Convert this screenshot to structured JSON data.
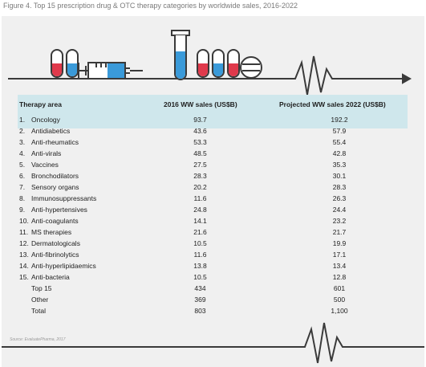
{
  "figure_caption": "Figure 4. Top 15 prescription drug & OTC therapy categories by worldwide sales, 2016-2022",
  "table": {
    "headers": {
      "therapy_area": "Therapy area",
      "sales_2016": "2016 WW sales (US$B)",
      "sales_2022": "Projected WW sales 2022 (US$B)"
    },
    "rows": [
      {
        "num": "1.",
        "name": "Oncology",
        "v2016": "93.7",
        "v2022": "192.2"
      },
      {
        "num": "2.",
        "name": "Antidiabetics",
        "v2016": "43.6",
        "v2022": "57.9"
      },
      {
        "num": "3.",
        "name": "Anti-rheumatics",
        "v2016": "53.3",
        "v2022": "55.4"
      },
      {
        "num": "4.",
        "name": "Anti-virals",
        "v2016": "48.5",
        "v2022": "42.8"
      },
      {
        "num": "5.",
        "name": "Vaccines",
        "v2016": "27.5",
        "v2022": "35.3"
      },
      {
        "num": "6.",
        "name": "Bronchodilators",
        "v2016": "28.3",
        "v2022": "30.1"
      },
      {
        "num": "7.",
        "name": "Sensory organs",
        "v2016": "20.2",
        "v2022": "28.3"
      },
      {
        "num": "8.",
        "name": "Immunosuppressants",
        "v2016": "11.6",
        "v2022": "26.3"
      },
      {
        "num": "9.",
        "name": "Anti-hypertensives",
        "v2016": "24.8",
        "v2022": "24.4"
      },
      {
        "num": "10.",
        "name": "Anti-coagulants",
        "v2016": "14.1",
        "v2022": "23.2"
      },
      {
        "num": "11.",
        "name": "MS therapies",
        "v2016": "21.6",
        "v2022": "21.7"
      },
      {
        "num": "12.",
        "name": "Dermatologicals",
        "v2016": "10.5",
        "v2022": "19.9"
      },
      {
        "num": "13.",
        "name": "Anti-fibrinolytics",
        "v2016": "11.6",
        "v2022": "17.1"
      },
      {
        "num": "14.",
        "name": "Anti-hyperlipidaemics",
        "v2016": "13.8",
        "v2022": "13.4"
      },
      {
        "num": "15.",
        "name": "Anti-bacteria",
        "v2016": "10.5",
        "v2022": "12.8"
      },
      {
        "num": "",
        "name": "Top 15",
        "v2016": "434",
        "v2022": "601"
      },
      {
        "num": "",
        "name": "Other",
        "v2016": "369",
        "v2022": "500"
      },
      {
        "num": "",
        "name": "Total",
        "v2016": "803",
        "v2022": "1,100"
      }
    ]
  },
  "source": "Source: EvaluatePharma, 2017",
  "colors": {
    "header_band": "#cfe7ec",
    "panel": "#f0f0f0",
    "line": "#3a3a3a",
    "pill_red": "#e0394b",
    "pill_blue": "#3a9ad9"
  },
  "icons": [
    "pill-capsule-icon",
    "syringe-icon",
    "test-tube-icon",
    "tablet-icon",
    "heartbeat-line-icon"
  ]
}
